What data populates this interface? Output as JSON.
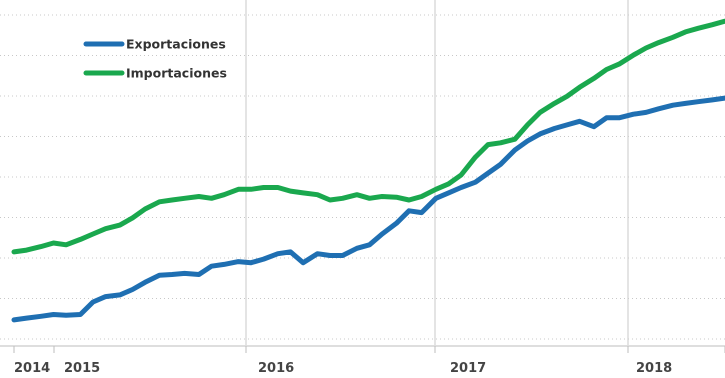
{
  "chart_data": {
    "type": "line",
    "title": "",
    "xlabel": "",
    "ylabel": "",
    "x_ticks": [
      "2014",
      "2015",
      "2016",
      "2017",
      "2018"
    ],
    "xlim": [
      2014.0,
      2018.5
    ],
    "ylim": [
      0,
      9
    ],
    "grid": {
      "x": true,
      "y": true,
      "y_style": "dotted"
    },
    "legend_position": "top-left",
    "series": [
      {
        "name": "Exportaciones",
        "color": "#1f6fb2",
        "x": [
          2014.0,
          2014.08,
          2014.17,
          2014.25,
          2014.33,
          2014.42,
          2014.5,
          2014.58,
          2014.67,
          2014.75,
          2014.83,
          2014.92,
          2015.0,
          2015.08,
          2015.17,
          2015.25,
          2015.33,
          2015.42,
          2015.5,
          2015.58,
          2015.67,
          2015.75,
          2015.83,
          2015.92,
          2016.0,
          2016.08,
          2016.17,
          2016.25,
          2016.33,
          2016.42,
          2016.5,
          2016.58,
          2016.67,
          2016.75,
          2016.83,
          2016.92,
          2017.0,
          2017.08,
          2017.17,
          2017.25,
          2017.33,
          2017.42,
          2017.5,
          2017.58,
          2017.67,
          2017.75,
          2017.83,
          2017.92,
          2018.0,
          2018.08,
          2018.17,
          2018.25,
          2018.33,
          2018.42,
          2018.5
        ],
        "values": [
          0.45,
          0.5,
          0.55,
          0.6,
          0.58,
          0.6,
          0.95,
          1.1,
          1.15,
          1.3,
          1.5,
          1.7,
          1.72,
          1.75,
          1.72,
          1.95,
          2.0,
          2.08,
          2.05,
          2.15,
          2.3,
          2.35,
          2.05,
          2.3,
          2.25,
          2.25,
          2.45,
          2.55,
          2.85,
          3.15,
          3.5,
          3.45,
          3.85,
          4.0,
          4.15,
          4.3,
          4.55,
          4.8,
          5.2,
          5.45,
          5.65,
          5.8,
          5.9,
          6.0,
          5.85,
          6.1,
          6.1,
          6.2,
          6.25,
          6.35,
          6.45,
          6.5,
          6.55,
          6.6,
          6.65
        ]
      },
      {
        "name": "Importaciones",
        "color": "#1aa84e",
        "x": [
          2014.0,
          2014.08,
          2014.17,
          2014.25,
          2014.33,
          2014.42,
          2014.5,
          2014.58,
          2014.67,
          2014.75,
          2014.83,
          2014.92,
          2015.0,
          2015.08,
          2015.17,
          2015.25,
          2015.33,
          2015.42,
          2015.5,
          2015.58,
          2015.67,
          2015.75,
          2015.83,
          2015.92,
          2016.0,
          2016.08,
          2016.17,
          2016.25,
          2016.33,
          2016.42,
          2016.5,
          2016.58,
          2016.67,
          2016.75,
          2016.83,
          2016.92,
          2017.0,
          2017.08,
          2017.17,
          2017.25,
          2017.33,
          2017.42,
          2017.5,
          2017.58,
          2017.67,
          2017.75,
          2017.83,
          2017.92,
          2018.0,
          2018.08,
          2018.17,
          2018.25,
          2018.33,
          2018.42,
          2018.5
        ],
        "values": [
          2.35,
          2.4,
          2.5,
          2.6,
          2.55,
          2.7,
          2.85,
          3.0,
          3.1,
          3.3,
          3.55,
          3.75,
          3.8,
          3.85,
          3.9,
          3.85,
          3.95,
          4.1,
          4.1,
          4.15,
          4.15,
          4.05,
          4.0,
          3.95,
          3.8,
          3.85,
          3.95,
          3.85,
          3.9,
          3.88,
          3.8,
          3.9,
          4.1,
          4.25,
          4.5,
          5.0,
          5.35,
          5.4,
          5.5,
          5.9,
          6.25,
          6.5,
          6.7,
          6.95,
          7.2,
          7.45,
          7.6,
          7.85,
          8.05,
          8.2,
          8.35,
          8.5,
          8.6,
          8.7,
          8.8
        ]
      }
    ]
  }
}
